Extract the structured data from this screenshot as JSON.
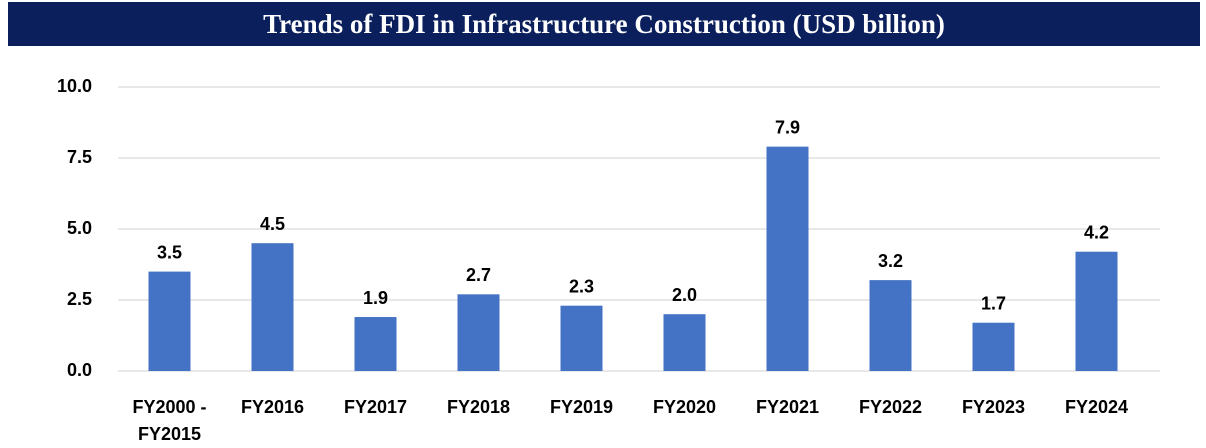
{
  "chart_data": {
    "type": "bar",
    "title": "Trends of FDI in Infrastructure Construction (USD billion)",
    "categories": [
      "FY2000 - FY2015",
      "FY2016",
      "FY2017",
      "FY2018",
      "FY2019",
      "FY2020",
      "FY2021",
      "FY2022",
      "FY2023",
      "FY2024"
    ],
    "values": [
      3.5,
      4.5,
      1.9,
      2.7,
      2.3,
      2.0,
      7.9,
      3.2,
      1.7,
      4.2
    ],
    "value_labels": [
      "3.5",
      "4.5",
      "1.9",
      "2.7",
      "2.3",
      "2.0",
      "7.9",
      "3.2",
      "1.7",
      "4.2"
    ],
    "color": "#4472c4",
    "ylim": [
      0,
      10
    ],
    "yticks": [
      {
        "value": 0,
        "label": "0.0"
      },
      2.5,
      {
        "value": 5,
        "label": "5.0"
      },
      7.5,
      {
        "value": 10,
        "label": "10.0"
      }
    ],
    "grid": true
  }
}
